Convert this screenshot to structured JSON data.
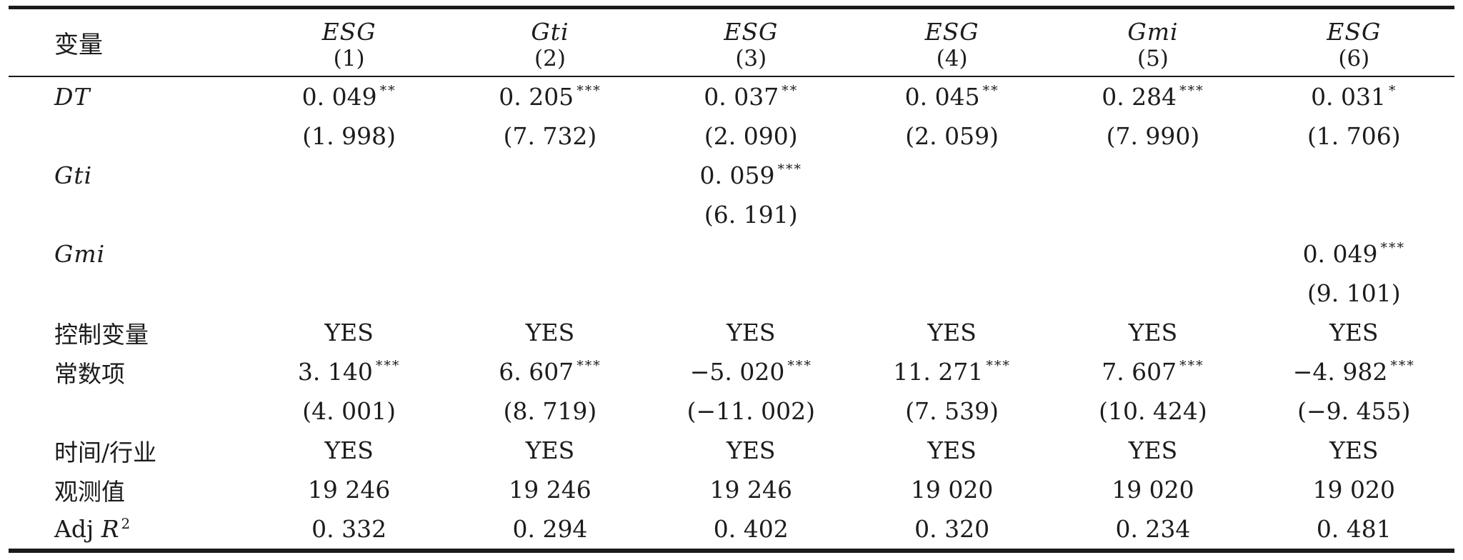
{
  "colors": {
    "background": "#ffffff",
    "text": "#1c1c1c",
    "rule": "#1a1a1a"
  },
  "header": {
    "variable_label": "变量",
    "columns": [
      {
        "dep_var": "ESG",
        "model_no": "(1)"
      },
      {
        "dep_var": "Gti",
        "model_no": "(2)"
      },
      {
        "dep_var": "ESG",
        "model_no": "(3)"
      },
      {
        "dep_var": "ESG",
        "model_no": "(4)"
      },
      {
        "dep_var": "Gmi",
        "model_no": "(5)"
      },
      {
        "dep_var": "ESG",
        "model_no": "(6)"
      }
    ]
  },
  "rows": {
    "DT": {
      "label": "DT",
      "coef": [
        "0. 049",
        "0. 205",
        "0. 037",
        "0. 045",
        "0. 284",
        "0. 031"
      ],
      "stars": [
        "**",
        "***",
        "**",
        "**",
        "***",
        "*"
      ],
      "t": [
        "(1. 998)",
        "(7. 732)",
        "(2. 090)",
        "(2. 059)",
        "(7. 990)",
        "(1. 706)"
      ]
    },
    "Gti": {
      "label": "Gti",
      "coef": [
        "",
        "",
        "0. 059",
        "",
        "",
        ""
      ],
      "stars": [
        "",
        "",
        "***",
        "",
        "",
        ""
      ],
      "t": [
        "",
        "",
        "(6. 191)",
        "",
        "",
        ""
      ]
    },
    "Gmi": {
      "label": "Gmi",
      "coef": [
        "",
        "",
        "",
        "",
        "",
        "0. 049"
      ],
      "stars": [
        "",
        "",
        "",
        "",
        "",
        "***"
      ],
      "t": [
        "",
        "",
        "",
        "",
        "",
        "(9. 101)"
      ]
    },
    "controls": {
      "label": "控制变量",
      "values": [
        "YES",
        "YES",
        "YES",
        "YES",
        "YES",
        "YES"
      ]
    },
    "constant": {
      "label": "常数项",
      "coef": [
        "3. 140",
        "6. 607",
        "−5. 020",
        "11. 271",
        "7. 607",
        "−4. 982"
      ],
      "stars": [
        "***",
        "***",
        "***",
        "***",
        "***",
        "***"
      ],
      "t": [
        "(4. 001)",
        "(8. 719)",
        "(−11. 002)",
        "(7. 539)",
        "(10. 424)",
        "(−9. 455)"
      ]
    },
    "time_industry": {
      "label": "时间/行业",
      "values": [
        "YES",
        "YES",
        "YES",
        "YES",
        "YES",
        "YES"
      ]
    },
    "observations": {
      "label": "观测值",
      "values": [
        "19 246",
        "19 246",
        "19 246",
        "19 020",
        "19 020",
        "19 020"
      ]
    },
    "adj_r2": {
      "label_prefix": "Adj ",
      "label_r": "R",
      "label_exp": "2",
      "values": [
        "0. 332",
        "0. 294",
        "0. 402",
        "0. 320",
        "0. 234",
        "0. 481"
      ]
    }
  }
}
